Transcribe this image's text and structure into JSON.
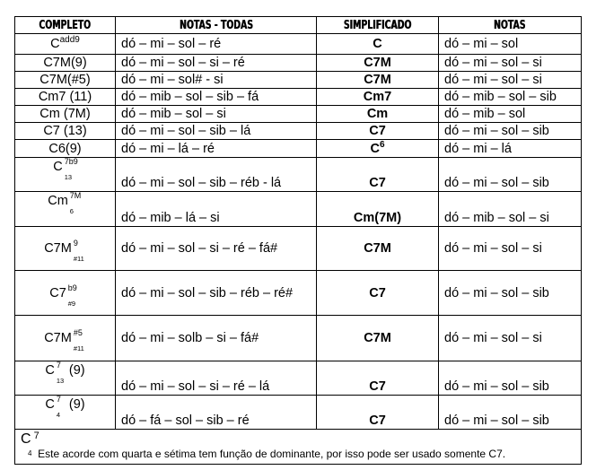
{
  "headers": [
    "COMPLETO",
    "NOTAS - TODAS",
    "SIMPLIFICADO",
    "NOTAS"
  ],
  "rows": [
    {
      "chord": {
        "base": "C",
        "sup": "add9",
        "sub": "",
        "suffix": ""
      },
      "all_notes": "dó – mi – sol – ré",
      "simplified": "C",
      "simplified_sup": "",
      "notes": "dó – mi – sol",
      "height": 23,
      "layout": "mid"
    },
    {
      "chord": {
        "base": "C7M(9)",
        "sup": "",
        "sub": "",
        "suffix": ""
      },
      "all_notes": "dó – mi – sol – si – ré",
      "simplified": "C7M",
      "simplified_sup": "",
      "notes": "dó – mi – sol – si",
      "height": 19,
      "layout": "mid"
    },
    {
      "chord": {
        "base": "C7M(#5)",
        "sup": "",
        "sub": "",
        "suffix": ""
      },
      "all_notes": "dó – mi – sol# - si",
      "simplified": "C7M",
      "simplified_sup": "",
      "notes": "dó – mi – sol – si",
      "height": 19,
      "layout": "mid"
    },
    {
      "chord": {
        "base": "Cm7 (11)",
        "sup": "",
        "sub": "",
        "suffix": ""
      },
      "all_notes": "dó – mib – sol – sib – fá",
      "simplified": "Cm7",
      "simplified_sup": "",
      "notes": "dó – mib – sol – sib",
      "height": 19,
      "layout": "mid"
    },
    {
      "chord": {
        "base": "Cm (7M)",
        "sup": "",
        "sub": "",
        "suffix": ""
      },
      "all_notes": "dó – mib – sol – si",
      "simplified": "Cm",
      "simplified_sup": "",
      "notes": "dó – mib – sol",
      "height": 19,
      "layout": "mid"
    },
    {
      "chord": {
        "base": "C7 (13)",
        "sup": "",
        "sub": "",
        "suffix": ""
      },
      "all_notes": "dó – mi – sol – sib – lá",
      "simplified": "C7",
      "simplified_sup": "",
      "notes": "dó – mi – sol – sib",
      "height": 19,
      "layout": "mid"
    },
    {
      "chord": {
        "base": "C6(9)",
        "sup": "",
        "sub": "",
        "suffix": ""
      },
      "all_notes": "dó – mi – lá – ré",
      "simplified": "C",
      "simplified_sup": "6",
      "notes": "dó – mi – lá",
      "height": 20,
      "layout": "mid"
    },
    {
      "chord": {
        "base": "C",
        "sup": "7b9",
        "sub": "13",
        "suffix": ""
      },
      "all_notes": "dó – mi – sol – sib – réb - lá",
      "simplified": "C7",
      "simplified_sup": "",
      "notes": "dó – mi – sol – sib",
      "height": 38,
      "layout": "bottom"
    },
    {
      "chord": {
        "base": "Cm",
        "sup": "7M",
        "sub": "6",
        "suffix": ""
      },
      "all_notes": "dó – mib – lá – si",
      "simplified": "Cm(7M)",
      "simplified_sup": "",
      "notes": "dó – mib – sol – si",
      "height": 39,
      "layout": "bottom"
    },
    {
      "chord": {
        "base": "C7M",
        "sup": "9",
        "sub": "#11",
        "suffix": ""
      },
      "all_notes": "dó – mi – sol – si – ré – fá#",
      "simplified": "C7M",
      "simplified_sup": "",
      "notes": "dó – mi – sol – si",
      "height": 49,
      "layout": "mid"
    },
    {
      "chord": {
        "base": "C7",
        "sup": "b9",
        "sub": "#9",
        "suffix": ""
      },
      "all_notes": "dó – mi – sol – sib – réb – ré#",
      "simplified": "C7",
      "simplified_sup": "",
      "notes": "dó – mi – sol – sib",
      "height": 50,
      "layout": "mid"
    },
    {
      "chord": {
        "base": "C7M",
        "sup": "#5",
        "sub": "#11",
        "suffix": ""
      },
      "all_notes": "dó – mi – solb – si – fá#",
      "simplified": "C7M",
      "simplified_sup": "",
      "notes": "dó – mi – sol – si",
      "height": 51,
      "layout": "mid"
    },
    {
      "chord": {
        "base": "C",
        "sup": "7",
        "sub": "13",
        "suffix": "(9)"
      },
      "all_notes": "dó – mi – sol – si – ré – lá",
      "simplified": "C7",
      "simplified_sup": "",
      "notes": "dó – mi – sol – sib",
      "height": 38,
      "layout": "bottom"
    },
    {
      "chord": {
        "base": "C",
        "sup": "7",
        "sub": "4",
        "suffix": "(9)"
      },
      "all_notes": "dó – fá – sol – sib – ré",
      "simplified": "C7",
      "simplified_sup": "",
      "notes": "dó – mi – sol – sib",
      "height": 38,
      "layout": "bottom"
    }
  ],
  "footer": {
    "chord_base": "C",
    "chord_sup": "7",
    "chord_sub": "4",
    "note": "Este acorde com quarta e sétima tem função de dominante, por isso pode ser usado somente C7."
  }
}
